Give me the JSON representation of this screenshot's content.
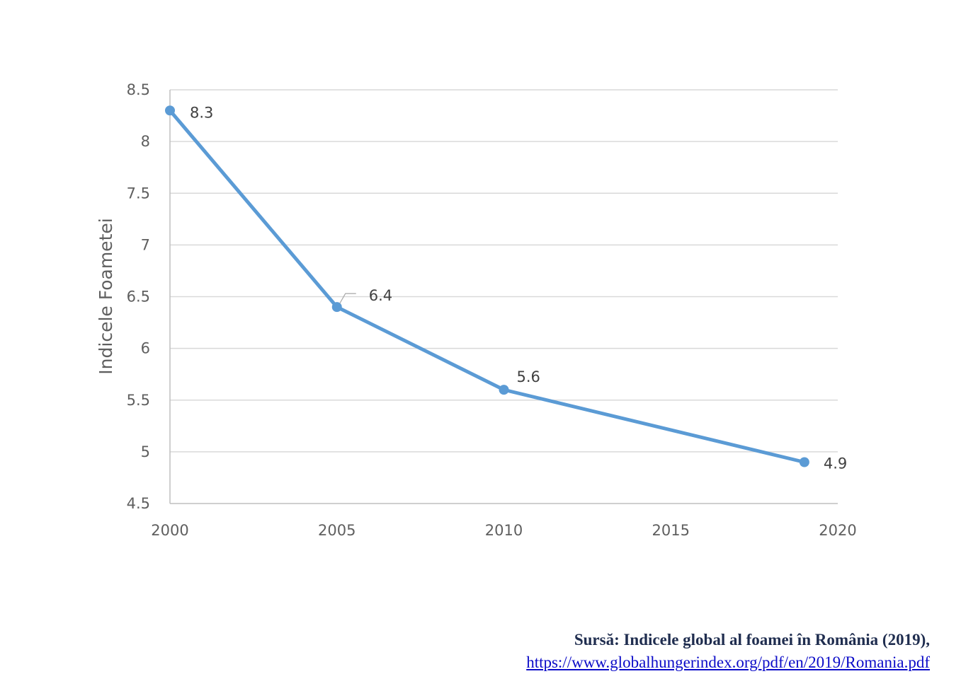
{
  "chart_data": {
    "type": "line",
    "xlabel": "",
    "ylabel": "Indicele Foametei",
    "xlim": [
      2000,
      2020
    ],
    "ylim": [
      4.5,
      8.5
    ],
    "x_ticks": [
      "2000",
      "2005",
      "2010",
      "2015",
      "2020"
    ],
    "y_ticks": [
      "8.5",
      "8",
      "7.5",
      "7",
      "6.5",
      "6",
      "5.5",
      "5",
      "4.5"
    ],
    "grid": "horizontal",
    "series": [
      {
        "color": "#5b9bd5",
        "points": [
          {
            "x": 2000,
            "y": 8.3,
            "label": "8.3"
          },
          {
            "x": 2005,
            "y": 6.4,
            "label": "6.4"
          },
          {
            "x": 2010,
            "y": 5.6,
            "label": "5.6"
          },
          {
            "x": 2019,
            "y": 4.9,
            "label": "4.9"
          }
        ]
      }
    ]
  },
  "source": {
    "title": "Sursă: Indicele global al foamei în România (2019),",
    "link": "https://www.globalhungerindex.org/pdf/en/2019/Romania.pdf"
  }
}
